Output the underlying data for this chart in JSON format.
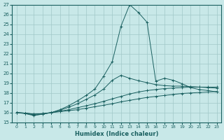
{
  "xlabel": "Humidex (Indice chaleur)",
  "bg_color": "#c8e8e8",
  "line_color": "#1a6060",
  "grid_color": "#a0c8c8",
  "xlim": [
    -0.5,
    23.5
  ],
  "ylim": [
    15,
    27
  ],
  "yticks": [
    15,
    16,
    17,
    18,
    19,
    20,
    21,
    22,
    23,
    24,
    25,
    26,
    27
  ],
  "xticks": [
    0,
    1,
    2,
    3,
    4,
    5,
    6,
    7,
    8,
    9,
    10,
    11,
    12,
    13,
    14,
    15,
    16,
    17,
    18,
    19,
    20,
    21,
    22,
    23
  ],
  "curves": [
    {
      "x": [
        0,
        1,
        2,
        3,
        4,
        5,
        6,
        7,
        8,
        9,
        10,
        11,
        12,
        13,
        14,
        15,
        16,
        17,
        18,
        19,
        20,
        21,
        22,
        23
      ],
      "y": [
        16.0,
        15.95,
        15.85,
        15.9,
        16.0,
        16.1,
        16.2,
        16.3,
        16.45,
        16.6,
        16.75,
        16.9,
        17.1,
        17.25,
        17.4,
        17.55,
        17.65,
        17.75,
        17.85,
        17.95,
        18.0,
        18.05,
        18.1,
        18.15
      ],
      "marker": "+"
    },
    {
      "x": [
        0,
        1,
        2,
        3,
        4,
        5,
        6,
        7,
        8,
        9,
        10,
        11,
        12,
        13,
        14,
        15,
        16,
        17,
        18,
        19,
        20,
        21,
        22,
        23
      ],
      "y": [
        16.0,
        15.95,
        15.85,
        15.9,
        16.0,
        16.15,
        16.3,
        16.5,
        16.7,
        16.9,
        17.15,
        17.4,
        17.65,
        17.9,
        18.1,
        18.25,
        18.35,
        18.45,
        18.5,
        18.55,
        18.6,
        18.6,
        18.6,
        18.6
      ],
      "marker": "+"
    },
    {
      "x": [
        0,
        1,
        2,
        3,
        4,
        5,
        6,
        7,
        8,
        9,
        10,
        11,
        12,
        13,
        14,
        15,
        16,
        17,
        18,
        19,
        20,
        21,
        22,
        23
      ],
      "y": [
        16.0,
        15.95,
        15.75,
        15.85,
        16.0,
        16.25,
        16.55,
        16.9,
        17.35,
        17.8,
        18.4,
        19.3,
        19.8,
        19.5,
        19.25,
        19.05,
        18.85,
        18.75,
        18.7,
        18.7,
        18.65,
        18.6,
        18.55,
        18.5
      ],
      "marker": "+"
    },
    {
      "x": [
        0,
        1,
        2,
        3,
        4,
        5,
        6,
        7,
        8,
        9,
        10,
        11,
        12,
        13,
        14,
        15,
        16,
        17,
        18,
        19,
        20,
        21,
        22,
        23
      ],
      "y": [
        16.0,
        15.9,
        15.7,
        15.85,
        16.0,
        16.3,
        16.7,
        17.2,
        17.75,
        18.4,
        19.7,
        21.2,
        24.8,
        27.0,
        26.2,
        25.2,
        19.2,
        19.5,
        19.3,
        18.95,
        18.55,
        18.35,
        18.25,
        18.1
      ],
      "marker": "+"
    }
  ]
}
